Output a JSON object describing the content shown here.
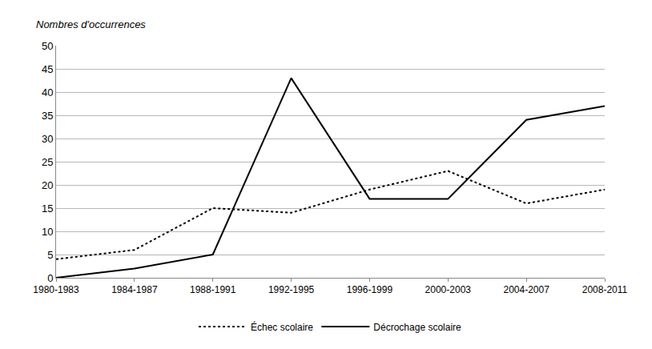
{
  "chart_data": {
    "type": "line",
    "y_label": "Nombres d'occurrences",
    "categories": [
      "1980-1983",
      "1984-1987",
      "1988-1991",
      "1992-1995",
      "1996-1999",
      "2000-2003",
      "2004-2007",
      "2008-2011"
    ],
    "series": [
      {
        "name": "Échec scolaire",
        "color": "#000000",
        "line_style": "dotted",
        "values": [
          4,
          6,
          15,
          14,
          19,
          23,
          16,
          19
        ]
      },
      {
        "name": "Décrochage scolaire",
        "color": "#000000",
        "line_style": "solid",
        "values": [
          0,
          2,
          5,
          43,
          17,
          17,
          34,
          37
        ]
      }
    ],
    "ylim": [
      0,
      50
    ],
    "yticks": [
      0,
      5,
      10,
      15,
      20,
      25,
      30,
      35,
      40,
      45,
      50
    ],
    "grid": true,
    "legend": "bottom"
  }
}
